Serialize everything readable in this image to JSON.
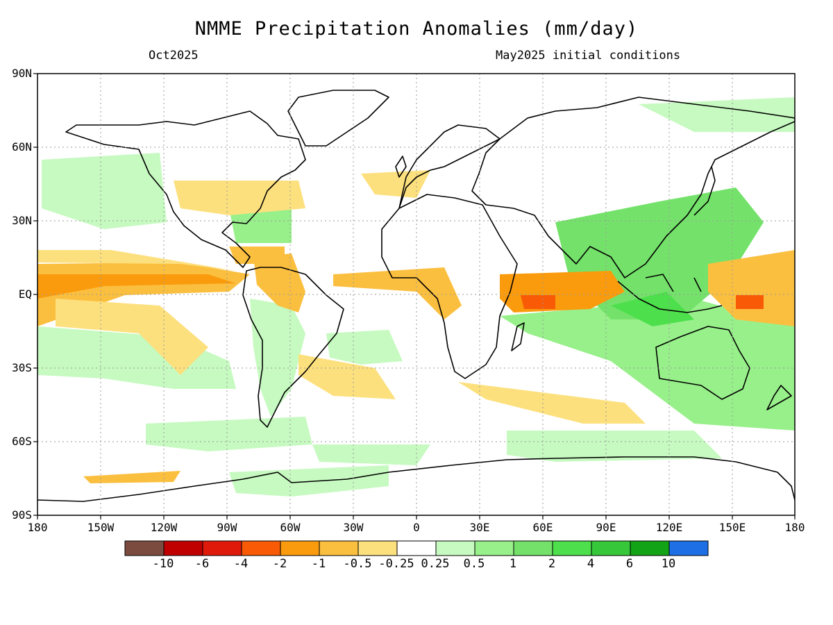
{
  "header": {
    "title": "NMME Precipitation Anomalies (mm/day)",
    "left_subtitle": "Oct2025",
    "right_subtitle": "May2025 initial conditions"
  },
  "map": {
    "projection": "global cylindrical equidistant",
    "lat_labels": [
      "90N",
      "60N",
      "30N",
      "EQ",
      "30S",
      "60S",
      "90S"
    ],
    "lon_labels": [
      "180",
      "150W",
      "120W",
      "90W",
      "60W",
      "30W",
      "0",
      "30E",
      "60E",
      "90E",
      "120E",
      "150E",
      "180"
    ],
    "grid": "dotted"
  },
  "colorbar": {
    "colors": [
      "#7b4b3f",
      "#c00000",
      "#e01a0a",
      "#f85a06",
      "#fa9b0e",
      "#fbbf3f",
      "#fde07e",
      "#ffffff",
      "#c6fac0",
      "#98f08a",
      "#74e26a",
      "#4ddf4c",
      "#36c83a",
      "#12a416",
      "#1e6fe6"
    ],
    "labels": [
      "-10",
      "-6",
      "-4",
      "-2",
      "-1",
      "-0.5",
      "-0.25",
      "0.25",
      "0.5",
      "1",
      "2",
      "4",
      "6",
      "10"
    ]
  }
}
